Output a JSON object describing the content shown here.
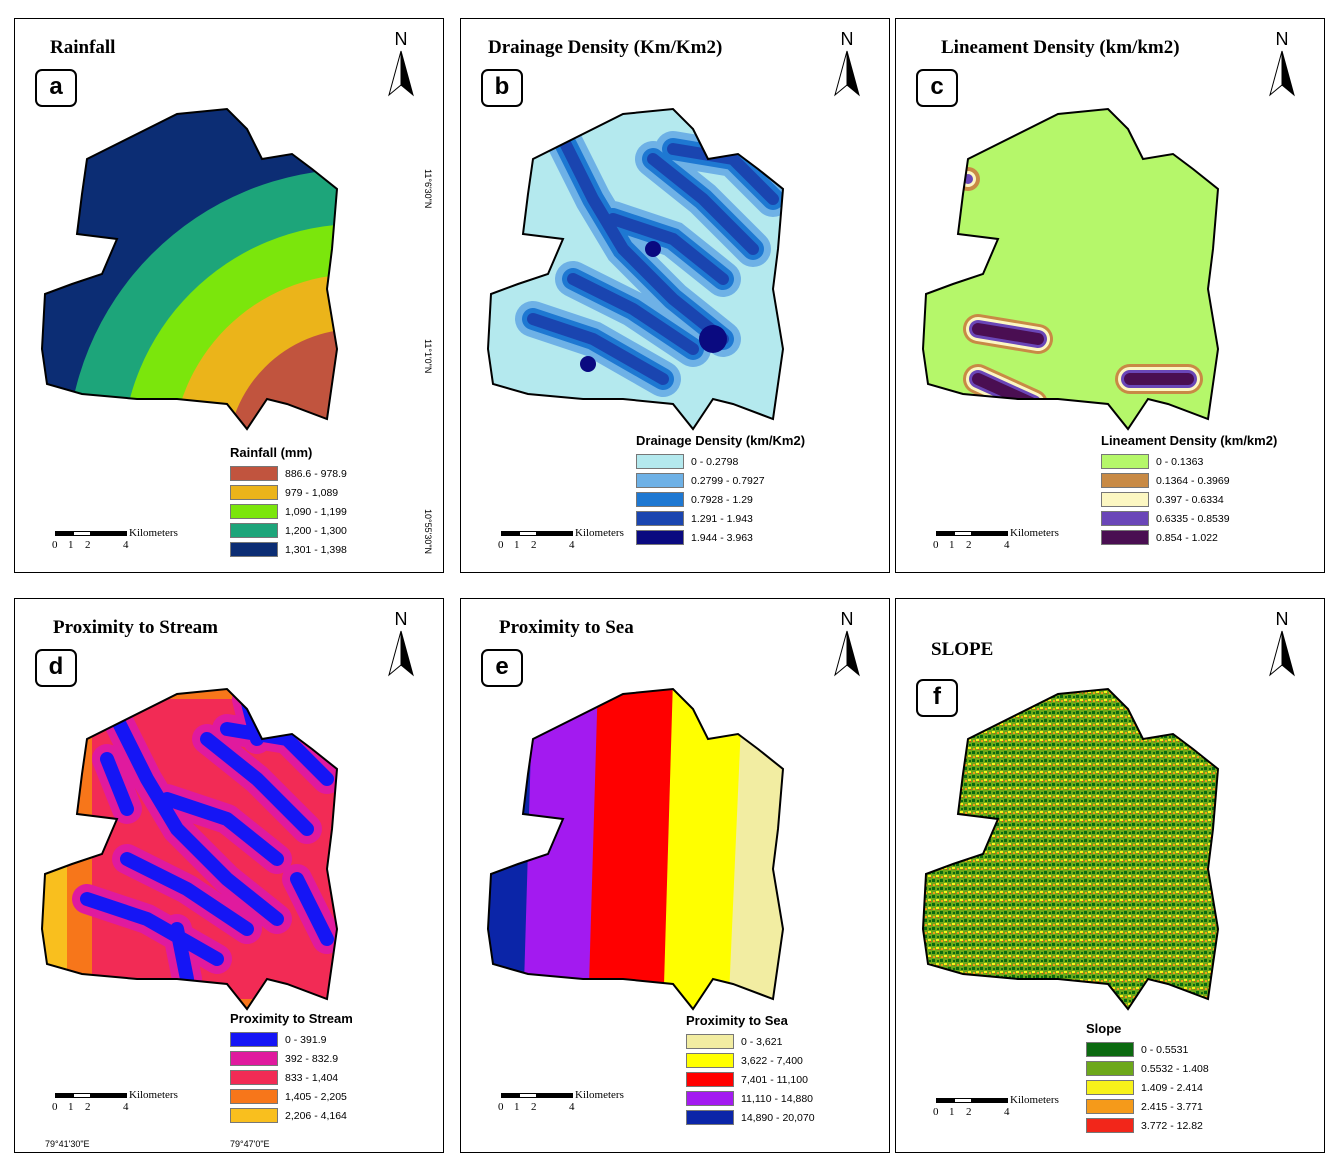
{
  "coords": {
    "lon_left": "79°41'30\"E",
    "lon_right": "79°47'0\"E",
    "lat_upper": "11°6'30\"N",
    "lat_middle": "11°1'0\"N",
    "lat_lower": "10°55'30\"N"
  },
  "north_label": "N",
  "scale": {
    "unit": "Kilometers",
    "ticks": [
      "0",
      "1",
      "2",
      "4"
    ]
  },
  "panels": [
    {
      "letter": "a",
      "title": "Rainfall",
      "legend_title": "Rainfall (mm)",
      "classes": [
        {
          "label": "886.6 - 978.9",
          "color": "#C1543E"
        },
        {
          "label": "979 - 1,089",
          "color": "#EBB41A"
        },
        {
          "label": "1,090 - 1,199",
          "color": "#7BE60C"
        },
        {
          "label": "1,200 - 1,300",
          "color": "#1DA57A"
        },
        {
          "label": "1,301 - 1,398",
          "color": "#0C2D74"
        }
      ]
    },
    {
      "letter": "b",
      "title": "Drainage Density (Km/Km2)",
      "legend_title": "Drainage Density (km/Km2)",
      "classes": [
        {
          "label": "0 - 0.2798",
          "color": "#B4E9EE"
        },
        {
          "label": "0.2799 - 0.7927",
          "color": "#6EB1E6"
        },
        {
          "label": "0.7928 - 1.29",
          "color": "#1E78D2"
        },
        {
          "label": "1.291 - 1.943",
          "color": "#1A45B0"
        },
        {
          "label": "1.944 - 3.963",
          "color": "#0A0A80"
        }
      ]
    },
    {
      "letter": "c",
      "title": "Lineament Density (km/km2)",
      "legend_title": "Lineament Density (km/km2)",
      "classes": [
        {
          "label": "0 - 0.1363",
          "color": "#B5F76A"
        },
        {
          "label": "0.1364 - 0.3969",
          "color": "#C88A45"
        },
        {
          "label": "0.397 - 0.6334",
          "color": "#FCF7C2"
        },
        {
          "label": "0.6335 - 0.8539",
          "color": "#6A46B8"
        },
        {
          "label": "0.854 - 1.022",
          "color": "#4A0E52"
        }
      ]
    },
    {
      "letter": "d",
      "title": "Proximity to Stream",
      "legend_title": "Proximity to Stream",
      "classes": [
        {
          "label": "0 - 391.9",
          "color": "#1515F5"
        },
        {
          "label": "392 - 832.9",
          "color": "#E01A9E"
        },
        {
          "label": "833 - 1,404",
          "color": "#F22B55"
        },
        {
          "label": "1,405 - 2,205",
          "color": "#F7761A"
        },
        {
          "label": "2,206 - 4,164",
          "color": "#F9BF1E"
        }
      ]
    },
    {
      "letter": "e",
      "title": "Proximity to Sea",
      "legend_title": "Proximity to Sea",
      "classes": [
        {
          "label": "0 - 3,621",
          "color": "#F2EDA2"
        },
        {
          "label": "3,622 - 7,400",
          "color": "#FFFF00"
        },
        {
          "label": "7,401 - 11,100",
          "color": "#FF0000"
        },
        {
          "label": "11,110 - 14,880",
          "color": "#A31AF0"
        },
        {
          "label": "14,890 - 20,070",
          "color": "#0B25A8"
        }
      ]
    },
    {
      "letter": "f",
      "title": "SLOPE",
      "legend_title": "Slope",
      "classes": [
        {
          "label": "0 - 0.5531",
          "color": "#0B6A10"
        },
        {
          "label": "0.5532 - 1.408",
          "color": "#6DA81A"
        },
        {
          "label": "1.409 - 2.414",
          "color": "#F7F21A"
        },
        {
          "label": "2.415 - 3.771",
          "color": "#F59A1A"
        },
        {
          "label": "3.772 - 12.82",
          "color": "#F2261A"
        }
      ]
    }
  ]
}
